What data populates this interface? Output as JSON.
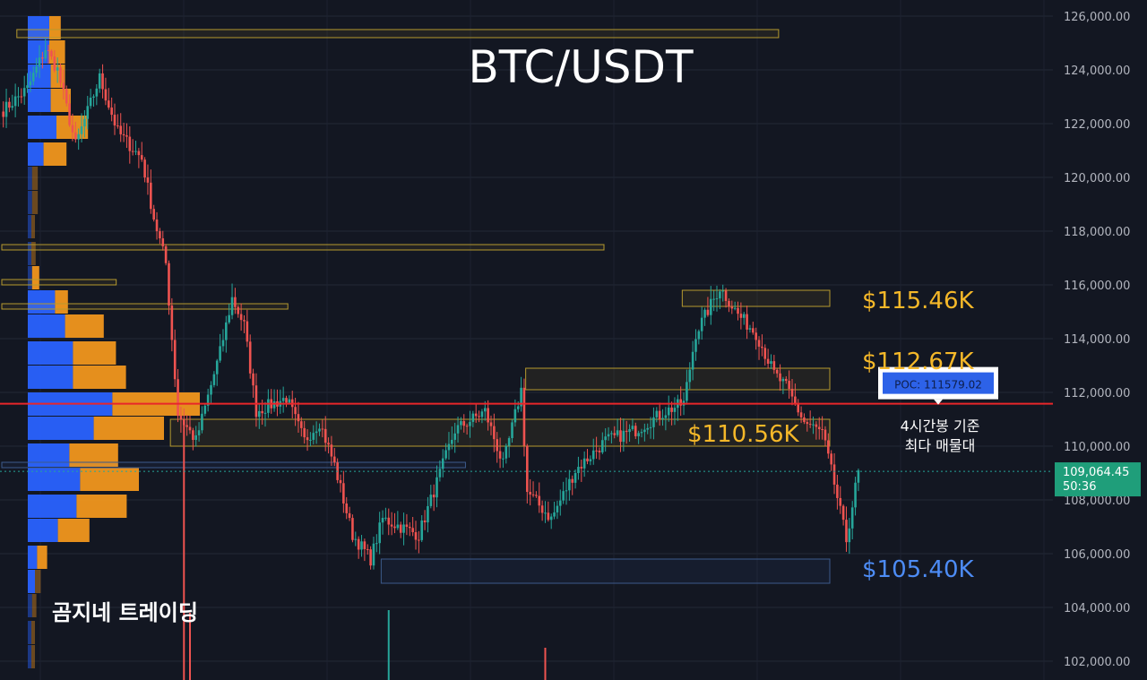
{
  "title": "BTC/USDT",
  "watermark": "곰지네 트레이딩",
  "colors": {
    "background": "#131722",
    "up": "#26a69a",
    "down": "#ef5350",
    "poc_line": "#e8262a",
    "vp_blue": "#2962ff",
    "vp_orange": "#f0961e",
    "level_gold": "#f5b829",
    "level_blue": "#4d8cf5",
    "price_badge": "#1f9e7a"
  },
  "poc": {
    "price": 111579.02,
    "label": "POC: 111579.02",
    "note_line1": "4시간봉 기준",
    "note_line2": "최다 매물대"
  },
  "current_price": {
    "value_label": "109,064.45",
    "countdown": "50:36",
    "value": 109064.45
  },
  "chart_data": {
    "type": "candlestick",
    "title": "BTC/USDT",
    "ylim": [
      101300,
      126600
    ],
    "y_ticks": [
      102000,
      104000,
      106000,
      108000,
      110000,
      112000,
      114000,
      116000,
      118000,
      120000,
      122000,
      124000,
      126000
    ],
    "y_tick_labels": [
      "102,000.00",
      "104,000.00",
      "106,000.00",
      "108,000.00",
      "110,000.00",
      "112,000.00",
      "114,000.00",
      "116,000.00",
      "118,000.00",
      "120,000.00",
      "122,000.00",
      "124,000.00",
      "126,000.00"
    ],
    "grid": true,
    "price_anchors": [
      [
        0,
        122500
      ],
      [
        8,
        123300
      ],
      [
        14,
        124800
      ],
      [
        18,
        124000
      ],
      [
        24,
        121200
      ],
      [
        32,
        123700
      ],
      [
        38,
        121700
      ],
      [
        46,
        120700
      ],
      [
        50,
        118500
      ],
      [
        54,
        116800
      ],
      [
        58,
        111200
      ],
      [
        64,
        110200
      ],
      [
        72,
        113500
      ],
      [
        76,
        115500
      ],
      [
        80,
        114500
      ],
      [
        84,
        111300
      ],
      [
        94,
        111800
      ],
      [
        100,
        110200
      ],
      [
        105,
        110900
      ],
      [
        110,
        109300
      ],
      [
        116,
        106700
      ],
      [
        122,
        105800
      ],
      [
        126,
        107300
      ],
      [
        138,
        106700
      ],
      [
        150,
        110600
      ],
      [
        160,
        111300
      ],
      [
        166,
        109300
      ],
      [
        172,
        112100
      ],
      [
        174,
        108300
      ],
      [
        182,
        107300
      ],
      [
        190,
        109100
      ],
      [
        200,
        110200
      ],
      [
        210,
        110600
      ],
      [
        220,
        111300
      ],
      [
        226,
        111600
      ],
      [
        230,
        114200
      ],
      [
        238,
        115900
      ],
      [
        244,
        114900
      ],
      [
        250,
        114200
      ],
      [
        256,
        112700
      ],
      [
        260,
        112200
      ],
      [
        266,
        110900
      ],
      [
        272,
        110500
      ],
      [
        276,
        108600
      ],
      [
        280,
        106500
      ],
      [
        284,
        109100
      ]
    ],
    "volume_profile": [
      {
        "price": 125600,
        "blue": 150,
        "orange": 80
      },
      {
        "price": 124700,
        "blue": 150,
        "orange": 110
      },
      {
        "price": 123800,
        "blue": 160,
        "orange": 100
      },
      {
        "price": 122900,
        "blue": 160,
        "orange": 140
      },
      {
        "price": 121900,
        "blue": 200,
        "orange": 220
      },
      {
        "price": 120900,
        "blue": 110,
        "orange": 160
      },
      {
        "price": 120000,
        "blue": 30,
        "orange": 40
      },
      {
        "price": 119100,
        "blue": 30,
        "orange": 40
      },
      {
        "price": 118200,
        "blue": 15,
        "orange": 10
      },
      {
        "price": 117200,
        "blue": 20,
        "orange": 30
      },
      {
        "price": 116300,
        "blue": 30,
        "orange": 50
      },
      {
        "price": 115400,
        "blue": 190,
        "orange": 90
      },
      {
        "price": 114500,
        "blue": 260,
        "orange": 270
      },
      {
        "price": 113500,
        "blue": 315,
        "orange": 300
      },
      {
        "price": 112600,
        "blue": 315,
        "orange": 370
      },
      {
        "price": 111600,
        "blue": 590,
        "orange": 610
      },
      {
        "price": 110700,
        "blue": 460,
        "orange": 490
      },
      {
        "price": 109700,
        "blue": 290,
        "orange": 340
      },
      {
        "price": 108800,
        "blue": 365,
        "orange": 410
      },
      {
        "price": 107800,
        "blue": 340,
        "orange": 350
      },
      {
        "price": 106900,
        "blue": 210,
        "orange": 220
      },
      {
        "price": 105900,
        "blue": 65,
        "orange": 70
      },
      {
        "price": 105000,
        "blue": 50,
        "orange": 40
      },
      {
        "price": 104100,
        "blue": 30,
        "orange": 30
      },
      {
        "price": 103100,
        "blue": 20,
        "orange": 20
      },
      {
        "price": 102200,
        "blue": 10,
        "orange": 10
      }
    ],
    "value_areas": [
      {
        "from_bar": 5,
        "to_bar": 258,
        "low": 125200,
        "high": 125500
      },
      {
        "from_bar": 0,
        "to_bar": 200,
        "low": 117300,
        "high": 117500
      },
      {
        "from_bar": 0,
        "to_bar": 38,
        "low": 116000,
        "high": 116200
      },
      {
        "from_bar": 0,
        "to_bar": 95,
        "low": 115100,
        "high": 115300
      },
      {
        "from_bar": 226,
        "to_bar": 275,
        "low": 115200,
        "high": 115800
      },
      {
        "from_bar": 174,
        "to_bar": 275,
        "low": 112100,
        "high": 112900
      },
      {
        "from_bar": 56,
        "to_bar": 275,
        "low": 110000,
        "high": 111000
      },
      {
        "from_bar": 0,
        "to_bar": 154,
        "low": 109200,
        "high": 109400
      },
      {
        "from_bar": 126,
        "to_bar": 275,
        "low": 104900,
        "high": 105800
      }
    ],
    "levels": [
      {
        "label": "$115.46K",
        "price": 115460,
        "color": "#f5b829"
      },
      {
        "label": "$112.67K",
        "price": 112670,
        "color": "#f5b829"
      },
      {
        "label": "$110.56K",
        "price": 110560,
        "color": "#f5b829"
      },
      {
        "label": "$105.40K",
        "price": 105400,
        "color": "#4d8cf5"
      }
    ]
  }
}
